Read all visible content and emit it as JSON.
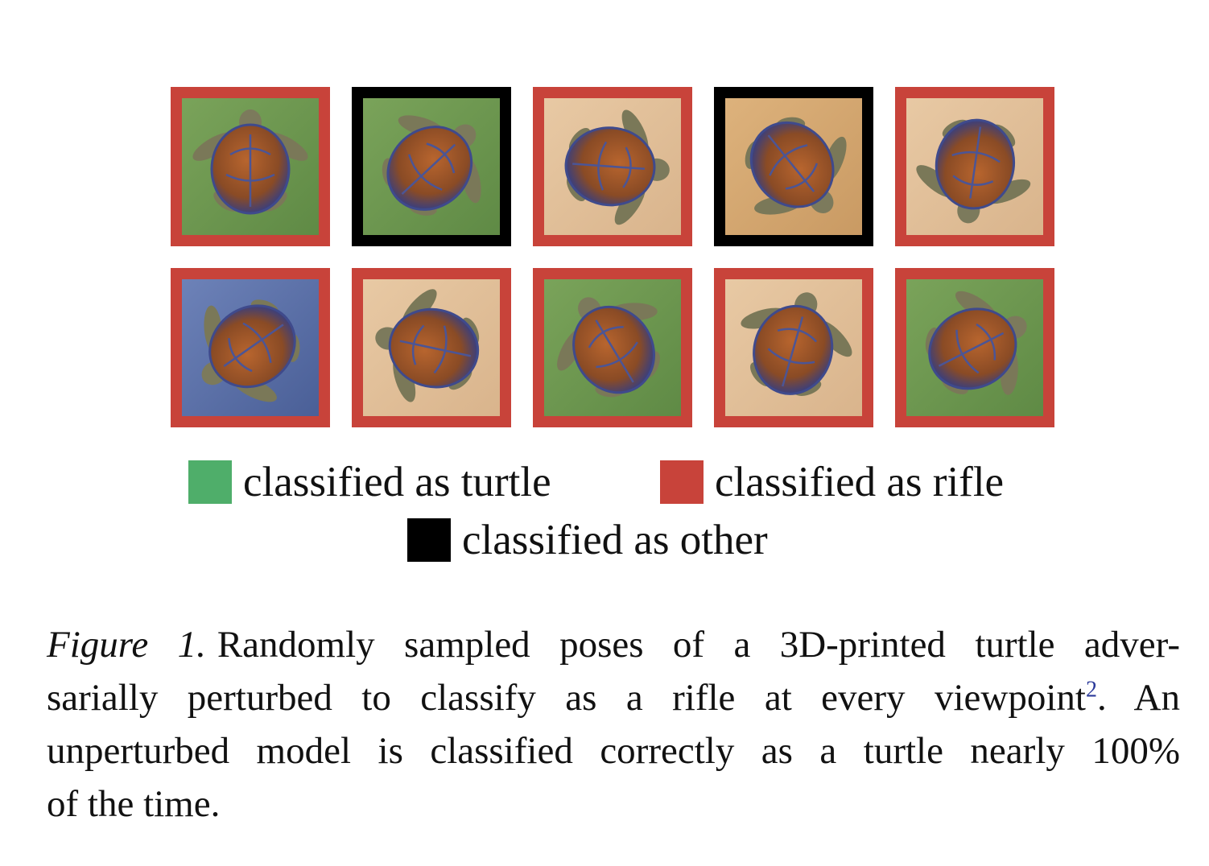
{
  "figure": {
    "tiles": [
      {
        "row": 1,
        "col": 1,
        "classification": "rifle",
        "background": "grass"
      },
      {
        "row": 1,
        "col": 2,
        "classification": "other",
        "background": "grass"
      },
      {
        "row": 1,
        "col": 3,
        "classification": "rifle",
        "background": "sand"
      },
      {
        "row": 1,
        "col": 4,
        "classification": "other",
        "background": "wood"
      },
      {
        "row": 1,
        "col": 5,
        "classification": "rifle",
        "background": "sand"
      },
      {
        "row": 2,
        "col": 1,
        "classification": "rifle",
        "background": "blue"
      },
      {
        "row": 2,
        "col": 2,
        "classification": "rifle",
        "background": "sand"
      },
      {
        "row": 2,
        "col": 3,
        "classification": "rifle",
        "background": "grass"
      },
      {
        "row": 2,
        "col": 4,
        "classification": "rifle",
        "background": "sand"
      },
      {
        "row": 2,
        "col": 5,
        "classification": "rifle",
        "background": "grass"
      }
    ],
    "colors": {
      "turtle": "#4fae6a",
      "rifle": "#c8433a",
      "other": "#000000"
    },
    "legend": {
      "turtle": "classified as turtle",
      "rifle": "classified as rifle",
      "other": "classified as other"
    }
  },
  "caption": {
    "label": "Figure 1.",
    "line1": "Randomly sampled poses of a 3D-printed turtle adver-",
    "line2a": "sarially perturbed to classify as a rifle at every viewpoint",
    "footnote": "2",
    "line2b": ".  An",
    "line3": "unperturbed model is classified correctly as a turtle nearly 100%",
    "line4": "of the time."
  }
}
